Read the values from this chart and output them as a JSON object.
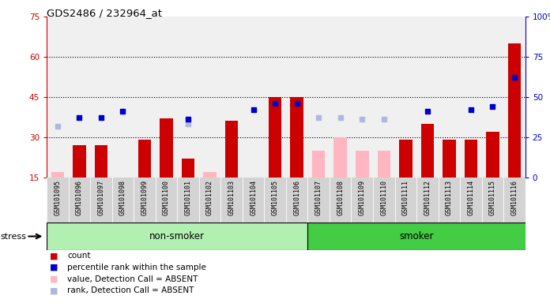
{
  "title": "GDS2486 / 232964_at",
  "samples": [
    "GSM101095",
    "GSM101096",
    "GSM101097",
    "GSM101098",
    "GSM101099",
    "GSM101100",
    "GSM101101",
    "GSM101102",
    "GSM101103",
    "GSM101104",
    "GSM101105",
    "GSM101106",
    "GSM101107",
    "GSM101108",
    "GSM101109",
    "GSM101110",
    "GSM101111",
    "GSM101112",
    "GSM101113",
    "GSM101114",
    "GSM101115",
    "GSM101116"
  ],
  "count": [
    null,
    27,
    27,
    null,
    29,
    37,
    22,
    null,
    36,
    null,
    45,
    45,
    null,
    null,
    null,
    null,
    29,
    35,
    29,
    29,
    32,
    65
  ],
  "percentile_rank": [
    null,
    37,
    37,
    41,
    null,
    null,
    36,
    null,
    null,
    42,
    46,
    46,
    null,
    null,
    null,
    null,
    null,
    41,
    null,
    42,
    44,
    62
  ],
  "absent_value": [
    17,
    null,
    null,
    null,
    29,
    null,
    null,
    17,
    null,
    null,
    null,
    null,
    25,
    30,
    25,
    25,
    null,
    null,
    null,
    null,
    null,
    null
  ],
  "absent_rank": [
    32,
    null,
    null,
    41,
    null,
    null,
    33,
    null,
    null,
    null,
    null,
    null,
    37,
    37,
    36,
    36,
    null,
    null,
    null,
    null,
    null,
    null
  ],
  "non_smoker_count": 12,
  "smoker_count": 10,
  "ylim_left": [
    15,
    75
  ],
  "ylim_right": [
    0,
    100
  ],
  "yticks_left": [
    15,
    30,
    45,
    60,
    75
  ],
  "yticks_right": [
    0,
    25,
    50,
    75,
    100
  ],
  "left_axis_color": "#cc0000",
  "right_axis_color": "#0000cc",
  "count_color": "#cc0000",
  "rank_color": "#0000cc",
  "absent_value_color": "#ffb6c1",
  "absent_rank_color": "#b0b8e0",
  "non_smoker_color": "#b2f0b2",
  "smoker_color": "#44cc44",
  "bg_color": "#d3d3d3",
  "plot_bg": "#f0f0f0",
  "stress_label": "stress",
  "non_smoker_label": "non-smoker",
  "smoker_label": "smoker",
  "legend_items": [
    {
      "color": "#cc0000",
      "label": "count"
    },
    {
      "color": "#0000cc",
      "label": "percentile rank within the sample"
    },
    {
      "color": "#ffb6c1",
      "label": "value, Detection Call = ABSENT"
    },
    {
      "color": "#b0b8e0",
      "label": "rank, Detection Call = ABSENT"
    }
  ]
}
